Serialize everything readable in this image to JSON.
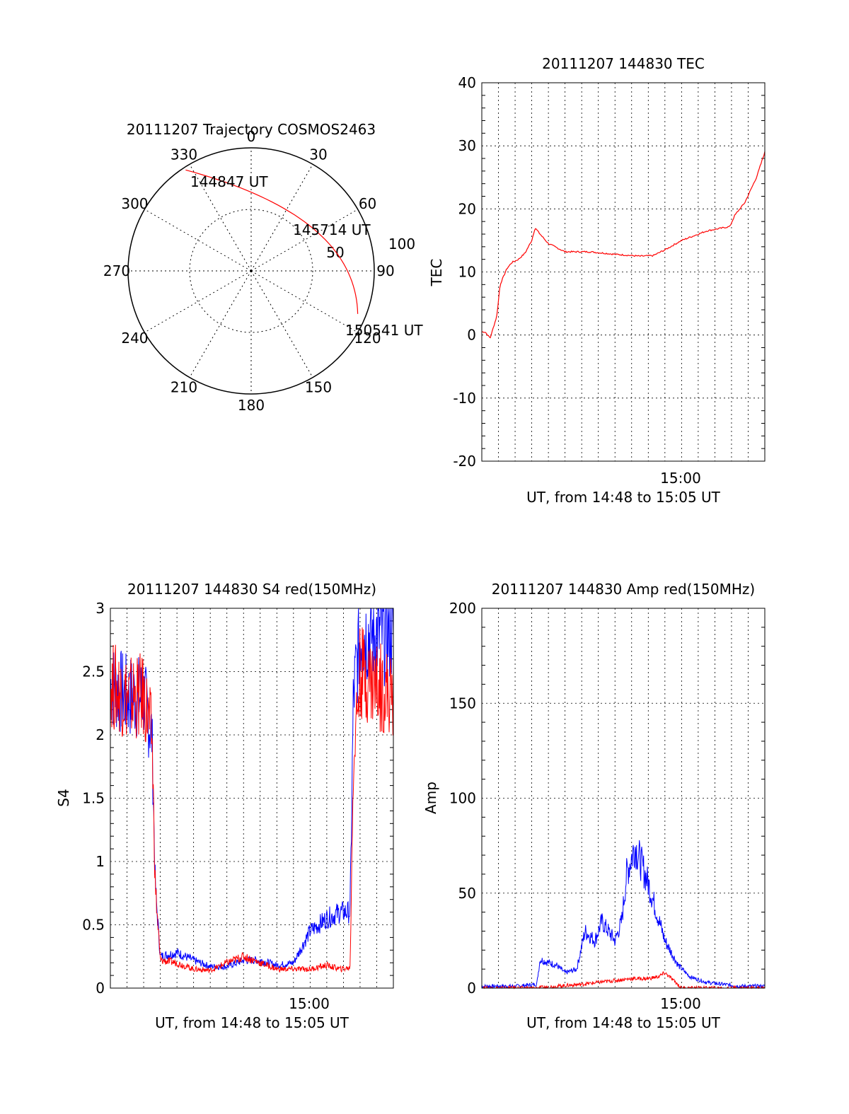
{
  "chart_data": [
    {
      "type": "polar-trajectory",
      "title": "20111207 Trajectory COSMOS2463",
      "azimuth_labels": [
        "0",
        "30",
        "60",
        "90",
        "120",
        "150",
        "180",
        "210",
        "240",
        "270",
        "300",
        "330"
      ],
      "elevation_labels": [
        "50",
        "100"
      ],
      "colors": {
        "track": "#ff0000",
        "frame": "#000000"
      },
      "points": [
        {
          "label": "144847 UT",
          "azimuth": 327,
          "zenith": 88
        },
        {
          "label": "145714 UT",
          "azimuth": 56,
          "zenith": 55
        },
        {
          "label": "150541 UT",
          "azimuth": 112,
          "zenith": 84
        }
      ]
    },
    {
      "type": "line",
      "title": "20111207 144830 TEC",
      "ylabel": "TEC",
      "xlabel": "UT, from 14:48 to 15:05 UT",
      "xtick_label": "15:00",
      "xlim": [
        "14:48",
        "15:05"
      ],
      "ylim": [
        -20,
        40
      ],
      "yticks": [
        "40",
        "30",
        "20",
        "10",
        "0",
        "-10",
        "-20"
      ],
      "grid": true,
      "series": [
        {
          "color": "#ff0000",
          "t_minutes": [
            0.2,
            0.5,
            0.9,
            1.1,
            1.5,
            1.8,
            2.2,
            2.6,
            3.0,
            3.2,
            3.5,
            4.0,
            5.0,
            6.5,
            8.0,
            9.5,
            10.3,
            11.0,
            12.0,
            13.5,
            14.9,
            15.2,
            15.8,
            16.5,
            17.0
          ],
          "values": [
            0.5,
            -0.5,
            3,
            8,
            10.5,
            11.5,
            12,
            13,
            15,
            17,
            16,
            14.5,
            13.2,
            13.2,
            12.8,
            12.5,
            12.6,
            13.5,
            15,
            16.5,
            17.2,
            19,
            21,
            25,
            29
          ]
        }
      ]
    },
    {
      "type": "line",
      "title": "20111207 144830 S4 red(150MHz)",
      "ylabel": "S4",
      "xlabel": "UT, from 14:48 to 15:05 UT",
      "xtick_label": "15:00",
      "xlim": [
        "14:48",
        "15:05"
      ],
      "ylim": [
        0,
        3
      ],
      "yticks": [
        "3",
        "2.5",
        "2",
        "1.5",
        "1",
        "0.5",
        "0"
      ],
      "grid": true,
      "series": [
        {
          "color": "#0000ff",
          "t_minutes": [
            0.0,
            1.0,
            2.0,
            2.5,
            2.7,
            3.0,
            4.0,
            5.0,
            6.0,
            7.0,
            8.0,
            9.0,
            10.0,
            11.0,
            12.0,
            13.0,
            13.8,
            14.4,
            14.6,
            15.0,
            16.0,
            17.0
          ],
          "values": [
            2.4,
            2.3,
            2.3,
            2.0,
            0.8,
            0.25,
            0.28,
            0.22,
            0.17,
            0.17,
            0.22,
            0.22,
            0.18,
            0.2,
            0.45,
            0.55,
            0.6,
            0.6,
            2.3,
            2.8,
            2.8,
            2.8
          ]
        },
        {
          "color": "#ff0000",
          "t_minutes": [
            0.0,
            1.0,
            2.0,
            2.5,
            2.7,
            3.0,
            4.0,
            5.0,
            6.0,
            7.0,
            8.0,
            9.0,
            10.0,
            11.0,
            12.0,
            13.0,
            13.8,
            14.4,
            14.6,
            15.0,
            16.0,
            17.0
          ],
          "values": [
            2.4,
            2.3,
            2.3,
            2.0,
            0.8,
            0.22,
            0.2,
            0.15,
            0.14,
            0.2,
            0.25,
            0.2,
            0.15,
            0.15,
            0.15,
            0.18,
            0.15,
            0.16,
            1.8,
            2.5,
            2.4,
            2.3
          ]
        }
      ]
    },
    {
      "type": "line",
      "title": "20111207 144830 Amp red(150MHz)",
      "ylabel": "Amp",
      "xlabel": "UT, from 14:48 to 15:05 UT",
      "xtick_label": "15:00",
      "xlim": [
        "14:48",
        "15:05"
      ],
      "ylim": [
        0,
        200
      ],
      "yticks": [
        "200",
        "150",
        "100",
        "50",
        "0"
      ],
      "grid": true,
      "series": [
        {
          "color": "#0000ff",
          "t_minutes": [
            0.0,
            2.0,
            3.3,
            3.5,
            4.5,
            5.0,
            5.7,
            6.2,
            6.8,
            7.2,
            8.0,
            8.4,
            8.7,
            9.2,
            9.6,
            10.0,
            10.5,
            11.0,
            11.8,
            12.5,
            13.5,
            14.5,
            15.5,
            17.0
          ],
          "values": [
            1,
            1,
            2,
            15,
            12,
            8,
            10,
            30,
            25,
            35,
            25,
            35,
            60,
            75,
            65,
            55,
            40,
            25,
            12,
            6,
            3,
            2,
            1,
            1
          ]
        },
        {
          "color": "#ff0000",
          "t_minutes": [
            0.0,
            3.3,
            4.5,
            6.0,
            7.0,
            8.0,
            9.0,
            10.0,
            10.6,
            11.0,
            11.4,
            12.0,
            17.0
          ],
          "values": [
            0,
            0,
            1,
            2,
            3,
            4,
            5,
            5,
            6,
            8,
            5,
            0,
            0
          ]
        }
      ]
    }
  ]
}
